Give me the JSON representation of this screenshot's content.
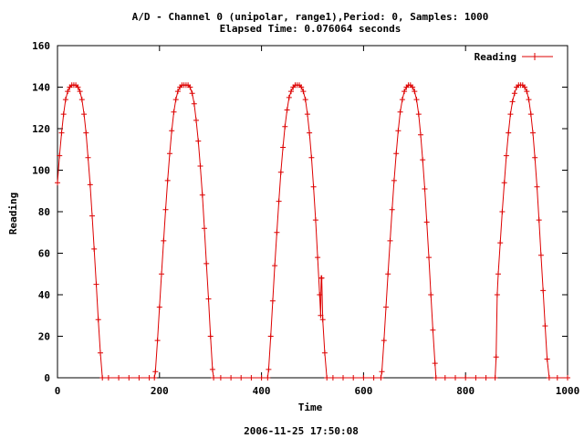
{
  "chart_data": {
    "type": "line",
    "title_line1": "A/D - Channel 0 (unipolar, range1),Period: 0, Samples: 1000",
    "title_line2": "Elapsed Time: 0.076064 seconds",
    "xlabel": "Time",
    "ylabel": "Reading",
    "footer": "2006-11-25 17:50:08",
    "xlim": [
      0,
      1000
    ],
    "ylim": [
      0,
      160
    ],
    "x_ticks": [
      0,
      200,
      400,
      600,
      800,
      1000
    ],
    "y_ticks": [
      0,
      20,
      40,
      60,
      80,
      100,
      120,
      140,
      160
    ],
    "x_tick_labels": [
      "0",
      "200",
      "400",
      "600",
      "800",
      "1000"
    ],
    "y_tick_labels": [
      "0",
      "20",
      "40",
      "60",
      "80",
      "100",
      "120",
      "140",
      "160"
    ],
    "legend_position": "top-right",
    "grid": false,
    "series": [
      {
        "name": "Reading",
        "color": "#dd0000",
        "marker": "plus",
        "points": [
          [
            0,
            94
          ],
          [
            4,
            107
          ],
          [
            8,
            118
          ],
          [
            12,
            127
          ],
          [
            16,
            134
          ],
          [
            20,
            138
          ],
          [
            24,
            140
          ],
          [
            28,
            141
          ],
          [
            32,
            141
          ],
          [
            36,
            141
          ],
          [
            40,
            140
          ],
          [
            44,
            138
          ],
          [
            48,
            134
          ],
          [
            52,
            127
          ],
          [
            56,
            118
          ],
          [
            60,
            106
          ],
          [
            64,
            93
          ],
          [
            68,
            78
          ],
          [
            72,
            62
          ],
          [
            76,
            45
          ],
          [
            80,
            28
          ],
          [
            84,
            12
          ],
          [
            88,
            0
          ],
          [
            100,
            0
          ],
          [
            120,
            0
          ],
          [
            140,
            0
          ],
          [
            160,
            0
          ],
          [
            180,
            0
          ],
          [
            190,
            0
          ],
          [
            192,
            3
          ],
          [
            196,
            18
          ],
          [
            200,
            34
          ],
          [
            204,
            50
          ],
          [
            208,
            66
          ],
          [
            212,
            81
          ],
          [
            216,
            95
          ],
          [
            220,
            108
          ],
          [
            224,
            119
          ],
          [
            228,
            128
          ],
          [
            232,
            134
          ],
          [
            236,
            138
          ],
          [
            240,
            140
          ],
          [
            244,
            141
          ],
          [
            248,
            141
          ],
          [
            252,
            141
          ],
          [
            256,
            141
          ],
          [
            260,
            140
          ],
          [
            264,
            137
          ],
          [
            268,
            132
          ],
          [
            272,
            124
          ],
          [
            276,
            114
          ],
          [
            280,
            102
          ],
          [
            284,
            88
          ],
          [
            288,
            72
          ],
          [
            292,
            55
          ],
          [
            296,
            38
          ],
          [
            300,
            20
          ],
          [
            304,
            4
          ],
          [
            306,
            0
          ],
          [
            320,
            0
          ],
          [
            340,
            0
          ],
          [
            360,
            0
          ],
          [
            380,
            0
          ],
          [
            400,
            0
          ],
          [
            412,
            0
          ],
          [
            414,
            4
          ],
          [
            418,
            20
          ],
          [
            422,
            37
          ],
          [
            426,
            54
          ],
          [
            430,
            70
          ],
          [
            434,
            85
          ],
          [
            438,
            99
          ],
          [
            442,
            111
          ],
          [
            446,
            121
          ],
          [
            450,
            129
          ],
          [
            454,
            135
          ],
          [
            458,
            138
          ],
          [
            462,
            140
          ],
          [
            466,
            141
          ],
          [
            470,
            141
          ],
          [
            474,
            141
          ],
          [
            478,
            140
          ],
          [
            482,
            138
          ],
          [
            486,
            134
          ],
          [
            490,
            127
          ],
          [
            494,
            118
          ],
          [
            498,
            106
          ],
          [
            502,
            92
          ],
          [
            506,
            76
          ],
          [
            510,
            58
          ],
          [
            514,
            40
          ],
          [
            516,
            30
          ],
          [
            517,
            48
          ],
          [
            518,
            48
          ],
          [
            520,
            28
          ],
          [
            524,
            12
          ],
          [
            528,
            0
          ],
          [
            540,
            0
          ],
          [
            560,
            0
          ],
          [
            580,
            0
          ],
          [
            600,
            0
          ],
          [
            620,
            0
          ],
          [
            634,
            0
          ],
          [
            636,
            3
          ],
          [
            640,
            18
          ],
          [
            644,
            34
          ],
          [
            648,
            50
          ],
          [
            652,
            66
          ],
          [
            656,
            81
          ],
          [
            660,
            95
          ],
          [
            664,
            108
          ],
          [
            668,
            119
          ],
          [
            672,
            128
          ],
          [
            676,
            134
          ],
          [
            680,
            138
          ],
          [
            684,
            140
          ],
          [
            688,
            141
          ],
          [
            692,
            141
          ],
          [
            696,
            140
          ],
          [
            700,
            138
          ],
          [
            704,
            134
          ],
          [
            708,
            127
          ],
          [
            712,
            117
          ],
          [
            716,
            105
          ],
          [
            720,
            91
          ],
          [
            724,
            75
          ],
          [
            728,
            58
          ],
          [
            732,
            40
          ],
          [
            736,
            23
          ],
          [
            740,
            7
          ],
          [
            742,
            0
          ],
          [
            760,
            0
          ],
          [
            780,
            0
          ],
          [
            800,
            0
          ],
          [
            820,
            0
          ],
          [
            840,
            0
          ],
          [
            858,
            0
          ],
          [
            860,
            10
          ],
          [
            862,
            40
          ],
          [
            864,
            50
          ],
          [
            868,
            65
          ],
          [
            872,
            80
          ],
          [
            876,
            94
          ],
          [
            880,
            107
          ],
          [
            884,
            118
          ],
          [
            888,
            127
          ],
          [
            892,
            133
          ],
          [
            896,
            137
          ],
          [
            900,
            140
          ],
          [
            904,
            141
          ],
          [
            908,
            141
          ],
          [
            912,
            141
          ],
          [
            916,
            140
          ],
          [
            920,
            138
          ],
          [
            924,
            134
          ],
          [
            928,
            127
          ],
          [
            932,
            118
          ],
          [
            936,
            106
          ],
          [
            940,
            92
          ],
          [
            944,
            76
          ],
          [
            948,
            59
          ],
          [
            952,
            42
          ],
          [
            956,
            25
          ],
          [
            960,
            9
          ],
          [
            964,
            0
          ],
          [
            980,
            0
          ],
          [
            1000,
            0
          ]
        ]
      }
    ]
  }
}
